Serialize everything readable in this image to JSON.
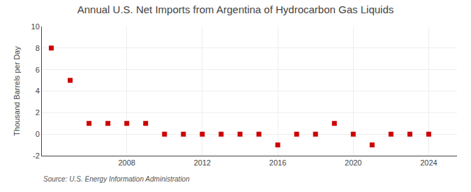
{
  "chart_data": {
    "type": "scatter",
    "title": "Annual U.S. Net Imports from Argentina of Hydrocarbon Gas Liquids",
    "ylabel": "Thousand Barrels per Day",
    "annotations": [
      "Source: U.S. Energy Information Administration"
    ],
    "x": [
      2004,
      2005,
      2006,
      2007,
      2008,
      2009,
      2010,
      2011,
      2012,
      2013,
      2014,
      2015,
      2016,
      2017,
      2018,
      2019,
      2020,
      2021,
      2022,
      2023,
      2024
    ],
    "values": [
      8,
      5,
      1,
      1,
      1,
      1,
      0,
      0,
      0,
      0,
      0,
      0,
      -1,
      0,
      0,
      1,
      0,
      -1,
      0,
      0,
      0
    ],
    "color": "#cc0000",
    "marker": "square",
    "xlim": [
      2003.5,
      2025.5
    ],
    "xticks": [
      2008,
      2012,
      2016,
      2020,
      2024
    ],
    "ylim": [
      -2,
      10
    ],
    "yticks": [
      -2,
      0,
      2,
      4,
      6,
      8,
      10
    ],
    "grid": true
  }
}
